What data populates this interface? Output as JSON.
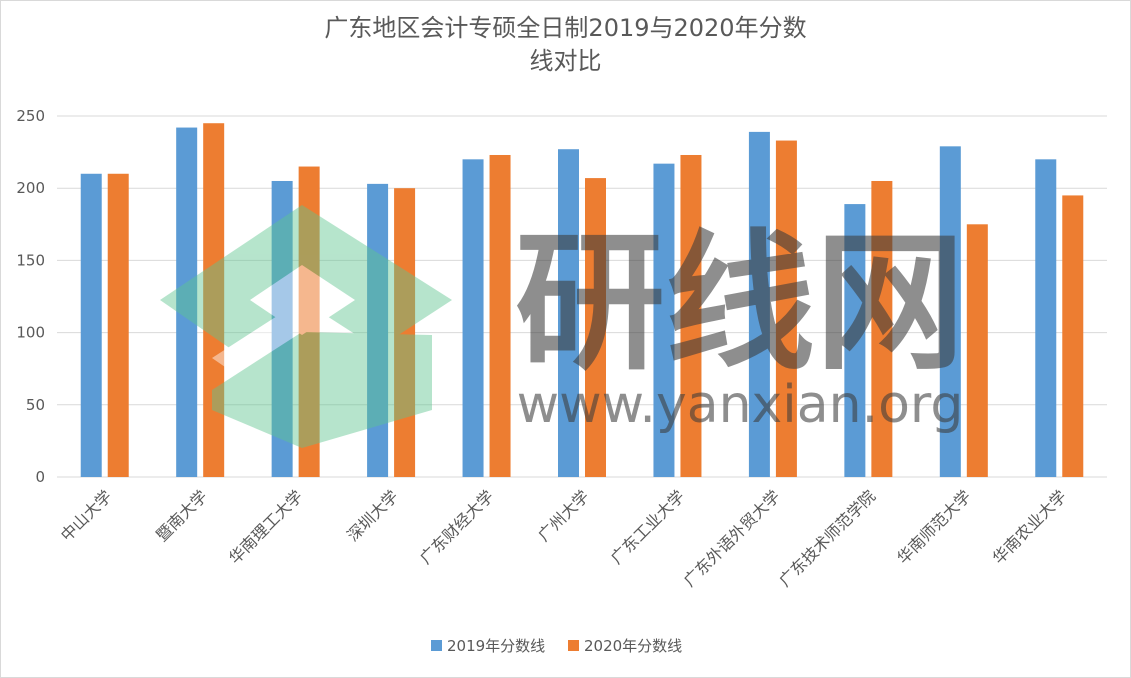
{
  "chart_data": {
    "type": "bar",
    "title_line1": "广东地区会计专硕全日制2019与2020年分数",
    "title_line2": "线对比",
    "categories": [
      "中山大学",
      "暨南大学",
      "华南理工大学",
      "深圳大学",
      "广东财经大学",
      "广州大学",
      "广东工业大学",
      "广东外语外贸大学",
      "广东技术师范学院",
      "华南师范大学",
      "华南农业大学"
    ],
    "series": [
      {
        "name": "2019年分数线",
        "color": "#5b9bd5",
        "values": [
          210,
          242,
          205,
          203,
          220,
          227,
          217,
          239,
          189,
          229,
          220
        ]
      },
      {
        "name": "2020年分数线",
        "color": "#ed7d31",
        "values": [
          210,
          245,
          215,
          200,
          223,
          207,
          223,
          233,
          205,
          175,
          195
        ]
      }
    ],
    "ylim": [
      0,
      250
    ],
    "yticks": [
      0,
      50,
      100,
      150,
      200,
      250
    ],
    "grid": true,
    "legend_position": "bottom"
  },
  "watermark": {
    "main": "研线网",
    "url": "www.yanxian.org"
  }
}
